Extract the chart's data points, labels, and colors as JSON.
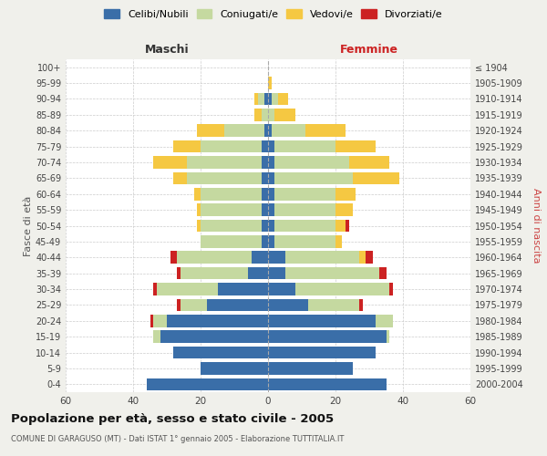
{
  "age_groups_bottom_to_top": [
    "0-4",
    "5-9",
    "10-14",
    "15-19",
    "20-24",
    "25-29",
    "30-34",
    "35-39",
    "40-44",
    "45-49",
    "50-54",
    "55-59",
    "60-64",
    "65-69",
    "70-74",
    "75-79",
    "80-84",
    "85-89",
    "90-94",
    "95-99",
    "100+"
  ],
  "birth_years_bottom_to_top": [
    "2000-2004",
    "1995-1999",
    "1990-1994",
    "1985-1989",
    "1980-1984",
    "1975-1979",
    "1970-1974",
    "1965-1969",
    "1960-1964",
    "1955-1959",
    "1950-1954",
    "1945-1949",
    "1940-1944",
    "1935-1939",
    "1930-1934",
    "1925-1929",
    "1920-1924",
    "1915-1919",
    "1910-1914",
    "1905-1909",
    "≤ 1904"
  ],
  "maschi": {
    "celibi": [
      36,
      20,
      28,
      32,
      30,
      18,
      15,
      6,
      5,
      2,
      2,
      2,
      2,
      2,
      2,
      2,
      1,
      0,
      1,
      0,
      0
    ],
    "coniugati": [
      0,
      0,
      0,
      2,
      4,
      8,
      18,
      20,
      22,
      18,
      18,
      18,
      18,
      22,
      22,
      18,
      12,
      2,
      2,
      0,
      0
    ],
    "vedovi": [
      0,
      0,
      0,
      0,
      0,
      0,
      0,
      0,
      0,
      0,
      1,
      1,
      2,
      4,
      10,
      8,
      8,
      2,
      1,
      0,
      0
    ],
    "divorziati": [
      0,
      0,
      0,
      0,
      1,
      1,
      1,
      1,
      2,
      0,
      0,
      0,
      0,
      0,
      0,
      0,
      0,
      0,
      0,
      0,
      0
    ]
  },
  "femmine": {
    "nubili": [
      35,
      25,
      32,
      35,
      32,
      12,
      8,
      5,
      5,
      2,
      2,
      2,
      2,
      2,
      2,
      2,
      1,
      0,
      1,
      0,
      0
    ],
    "coniugate": [
      0,
      0,
      0,
      1,
      5,
      15,
      28,
      28,
      22,
      18,
      18,
      18,
      18,
      23,
      22,
      18,
      10,
      2,
      2,
      0,
      0
    ],
    "vedove": [
      0,
      0,
      0,
      0,
      0,
      0,
      0,
      0,
      2,
      2,
      3,
      5,
      6,
      14,
      12,
      12,
      12,
      6,
      3,
      1,
      0
    ],
    "divorziate": [
      0,
      0,
      0,
      0,
      0,
      1,
      1,
      2,
      2,
      0,
      1,
      0,
      0,
      0,
      0,
      0,
      0,
      0,
      0,
      0,
      0
    ]
  },
  "colors": {
    "celibi": "#3a6ea8",
    "coniugati": "#c5d9a0",
    "vedovi": "#f5c842",
    "divorziati": "#cc2222"
  },
  "xlim": 60,
  "title": "Popolazione per età, sesso e stato civile - 2005",
  "subtitle": "COMUNE DI GARAGUSO (MT) - Dati ISTAT 1° gennaio 2005 - Elaborazione TUTTITALIA.IT",
  "ylabel_left": "Fasce di età",
  "ylabel_right": "Anni di nascita",
  "xlabel_left": "Maschi",
  "xlabel_right": "Femmine",
  "bg_color": "#f0f0eb",
  "plot_bg_color": "#ffffff"
}
